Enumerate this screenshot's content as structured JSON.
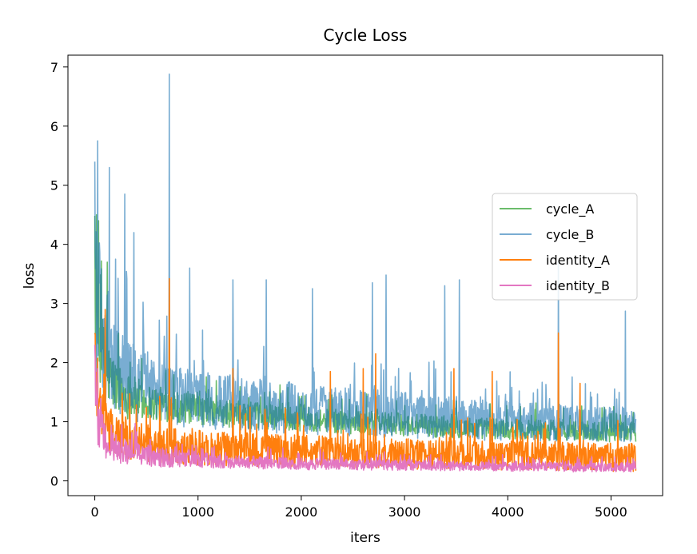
{
  "chart_data": {
    "type": "line",
    "title": "Cycle Loss",
    "xlabel": "iters",
    "ylabel": "loss",
    "xlim": [
      -260,
      5500
    ],
    "ylim": [
      -0.25,
      7.2
    ],
    "xticks": [
      0,
      1000,
      2000,
      3000,
      4000,
      5000
    ],
    "xtick_labels": [
      "0",
      "1000",
      "2000",
      "3000",
      "4000",
      "5000"
    ],
    "yticks": [
      0,
      1,
      2,
      3,
      4,
      5,
      6,
      7
    ],
    "ytick_labels": [
      "0",
      "1",
      "2",
      "3",
      "4",
      "5",
      "6",
      "7"
    ],
    "grid": false,
    "legend": "center-right",
    "series": [
      {
        "name": "cycle_A",
        "color": "#2ca02c",
        "opacity": 0.7,
        "x": [
          0,
          20,
          40,
          60,
          100,
          150,
          200,
          300,
          400,
          500,
          600,
          700,
          800,
          900,
          1000,
          1200,
          1400,
          1600,
          1800,
          2000,
          2200,
          2400,
          2600,
          2800,
          3000,
          3200,
          3400,
          3600,
          3800,
          4000,
          4200,
          4400,
          4600,
          4800,
          5000,
          5200,
          5240
        ],
        "y": [
          2.8,
          2.6,
          2.4,
          2.2,
          1.95,
          1.75,
          1.6,
          1.45,
          1.4,
          1.35,
          1.3,
          1.28,
          1.25,
          1.22,
          1.2,
          1.15,
          1.12,
          1.1,
          1.07,
          1.05,
          1.03,
          1.0,
          0.98,
          0.97,
          0.95,
          0.93,
          0.92,
          0.9,
          0.89,
          0.88,
          0.87,
          0.86,
          0.85,
          0.84,
          0.83,
          0.82,
          0.82
        ],
        "amplitude": [
          0.9,
          0.9,
          0.8,
          0.7,
          0.6,
          0.5,
          0.45,
          0.4,
          0.35,
          0.32,
          0.3,
          0.28,
          0.27,
          0.26,
          0.25,
          0.24,
          0.23,
          0.22,
          0.22,
          0.21,
          0.2,
          0.2,
          0.2,
          0.2,
          0.19,
          0.19,
          0.19,
          0.18,
          0.18,
          0.18,
          0.18,
          0.18,
          0.17,
          0.17,
          0.17,
          0.17,
          0.17
        ],
        "spikes": [
          {
            "x": 15,
            "y": 4.5
          },
          {
            "x": 35,
            "y": 4.4
          },
          {
            "x": 120,
            "y": 3.7
          },
          {
            "x": 100,
            "y": 2.8
          },
          {
            "x": 230,
            "y": 2.5
          },
          {
            "x": 720,
            "y": 2.6
          }
        ]
      },
      {
        "name": "cycle_B",
        "color": "#1f77b4",
        "opacity": 0.6,
        "x": [
          0,
          20,
          40,
          60,
          100,
          150,
          200,
          300,
          400,
          500,
          600,
          700,
          800,
          900,
          1000,
          1200,
          1400,
          1600,
          1800,
          2000,
          2200,
          2400,
          2600,
          2800,
          3000,
          3200,
          3400,
          3600,
          3800,
          4000,
          4200,
          4400,
          4600,
          4800,
          5000,
          5200,
          5240
        ],
        "y": [
          3.2,
          3.0,
          2.8,
          2.6,
          2.3,
          2.05,
          1.9,
          1.75,
          1.65,
          1.55,
          1.5,
          1.45,
          1.42,
          1.4,
          1.38,
          1.33,
          1.3,
          1.27,
          1.24,
          1.22,
          1.2,
          1.17,
          1.15,
          1.13,
          1.11,
          1.09,
          1.07,
          1.05,
          1.03,
          1.02,
          1.0,
          0.99,
          0.98,
          0.97,
          0.96,
          0.95,
          0.95
        ],
        "amplitude": [
          1.5,
          1.5,
          1.3,
          1.2,
          1.0,
          0.9,
          0.8,
          0.7,
          0.65,
          0.6,
          0.55,
          0.55,
          0.5,
          0.5,
          0.5,
          0.48,
          0.46,
          0.45,
          0.44,
          0.43,
          0.42,
          0.41,
          0.4,
          0.4,
          0.39,
          0.38,
          0.37,
          0.36,
          0.35,
          0.34,
          0.33,
          0.32,
          0.31,
          0.3,
          0.3,
          0.3,
          0.3
        ],
        "spikes": [
          {
            "x": 0,
            "y": 5.4
          },
          {
            "x": 30,
            "y": 5.75
          },
          {
            "x": 140,
            "y": 5.3
          },
          {
            "x": 290,
            "y": 4.85
          },
          {
            "x": 380,
            "y": 4.2
          },
          {
            "x": 200,
            "y": 3.75
          },
          {
            "x": 720,
            "y": 6.88
          },
          {
            "x": 920,
            "y": 3.6
          },
          {
            "x": 1340,
            "y": 3.4
          },
          {
            "x": 1660,
            "y": 3.4
          },
          {
            "x": 2110,
            "y": 3.25
          },
          {
            "x": 2690,
            "y": 3.35
          },
          {
            "x": 2820,
            "y": 3.48
          },
          {
            "x": 3390,
            "y": 3.3
          },
          {
            "x": 3530,
            "y": 3.4
          },
          {
            "x": 4490,
            "y": 3.7
          },
          {
            "x": 5140,
            "y": 2.87
          }
        ]
      },
      {
        "name": "identity_A",
        "color": "#ff7f0e",
        "opacity": 1.0,
        "x": [
          0,
          20,
          40,
          60,
          100,
          150,
          200,
          300,
          400,
          500,
          600,
          700,
          800,
          900,
          1000,
          1200,
          1400,
          1600,
          1800,
          2000,
          2200,
          2400,
          2600,
          2800,
          3000,
          3200,
          3400,
          3600,
          3800,
          4000,
          4200,
          4400,
          4600,
          4800,
          5000,
          5200,
          5240
        ],
        "y": [
          1.9,
          1.6,
          1.35,
          1.15,
          0.95,
          0.85,
          0.78,
          0.72,
          0.68,
          0.65,
          0.62,
          0.6,
          0.58,
          0.57,
          0.56,
          0.54,
          0.53,
          0.52,
          0.51,
          0.5,
          0.49,
          0.48,
          0.47,
          0.46,
          0.46,
          0.45,
          0.44,
          0.44,
          0.43,
          0.43,
          0.42,
          0.42,
          0.41,
          0.41,
          0.4,
          0.4,
          0.4
        ],
        "amplitude": [
          0.7,
          0.7,
          0.6,
          0.5,
          0.45,
          0.4,
          0.38,
          0.36,
          0.34,
          0.33,
          0.32,
          0.32,
          0.31,
          0.31,
          0.3,
          0.3,
          0.29,
          0.29,
          0.28,
          0.28,
          0.27,
          0.27,
          0.27,
          0.26,
          0.26,
          0.26,
          0.25,
          0.25,
          0.25,
          0.25,
          0.24,
          0.24,
          0.24,
          0.24,
          0.24,
          0.24,
          0.24
        ],
        "spikes": [
          {
            "x": 0,
            "y": 2.5
          },
          {
            "x": 100,
            "y": 2.9
          },
          {
            "x": 720,
            "y": 3.42
          },
          {
            "x": 1340,
            "y": 1.9
          },
          {
            "x": 2280,
            "y": 1.85
          },
          {
            "x": 2600,
            "y": 1.9
          },
          {
            "x": 2720,
            "y": 2.15
          },
          {
            "x": 3480,
            "y": 1.9
          },
          {
            "x": 3850,
            "y": 1.85
          },
          {
            "x": 4490,
            "y": 2.5
          },
          {
            "x": 4700,
            "y": 1.65
          }
        ]
      },
      {
        "name": "identity_B",
        "color": "#e377c2",
        "opacity": 1.0,
        "x": [
          0,
          20,
          40,
          60,
          100,
          150,
          200,
          300,
          400,
          500,
          600,
          700,
          800,
          900,
          1000,
          1200,
          1400,
          1600,
          1800,
          2000,
          2200,
          2400,
          2600,
          2800,
          3000,
          3200,
          3400,
          3600,
          3800,
          4000,
          4200,
          4400,
          4600,
          4800,
          5000,
          5200,
          5240
        ],
        "y": [
          1.4,
          1.15,
          0.95,
          0.82,
          0.7,
          0.6,
          0.55,
          0.5,
          0.46,
          0.43,
          0.41,
          0.39,
          0.37,
          0.36,
          0.35,
          0.33,
          0.32,
          0.31,
          0.3,
          0.29,
          0.28,
          0.28,
          0.27,
          0.27,
          0.26,
          0.26,
          0.25,
          0.25,
          0.25,
          0.24,
          0.24,
          0.24,
          0.23,
          0.23,
          0.23,
          0.23,
          0.23
        ],
        "amplitude": [
          0.6,
          0.55,
          0.45,
          0.38,
          0.32,
          0.28,
          0.25,
          0.22,
          0.2,
          0.18,
          0.17,
          0.16,
          0.15,
          0.14,
          0.13,
          0.12,
          0.11,
          0.11,
          0.1,
          0.1,
          0.1,
          0.09,
          0.09,
          0.09,
          0.09,
          0.08,
          0.08,
          0.08,
          0.08,
          0.08,
          0.08,
          0.08,
          0.08,
          0.08,
          0.08,
          0.08,
          0.08
        ],
        "spikes": [
          {
            "x": 0,
            "y": 2.3
          },
          {
            "x": 25,
            "y": 1.9
          }
        ]
      }
    ]
  }
}
